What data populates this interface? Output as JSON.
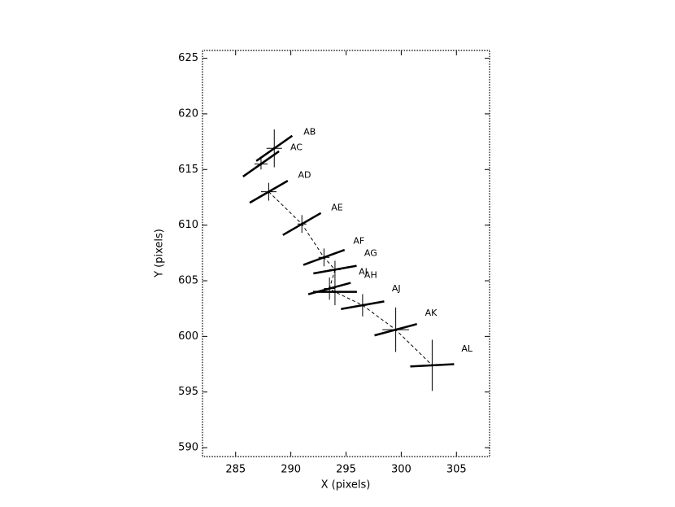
{
  "chart_data": {
    "type": "scatter",
    "xlabel": "X (pixels)",
    "ylabel": "Y (pixels)",
    "labels": [
      "AB",
      "AC",
      "AD",
      "AE",
      "AF",
      "AG",
      "AI",
      "AH",
      "AJ",
      "AK",
      "AL"
    ],
    "x": [
      288.5,
      287.3,
      288.0,
      291.0,
      293.0,
      294.0,
      293.5,
      294.0,
      296.5,
      299.5,
      302.8
    ],
    "y": [
      616.9,
      615.5,
      613.0,
      610.1,
      607.1,
      606.0,
      604.3,
      604.0,
      602.8,
      600.6,
      597.4
    ],
    "xerr": [
      0.7,
      0.6,
      0.7,
      0.4,
      0.5,
      0.5,
      0.5,
      0.7,
      0.4,
      1.2,
      0.3
    ],
    "yerr": [
      1.7,
      0.5,
      0.8,
      0.8,
      0.8,
      0.8,
      1.0,
      1.2,
      1.0,
      2.0,
      2.3
    ],
    "angles": [
      35,
      35,
      30,
      30,
      20,
      10,
      15,
      0,
      10,
      15,
      3
    ],
    "color": "#000000",
    "xlim": [
      282,
      308
    ],
    "ylim": [
      589.2,
      625.7
    ],
    "xticks": [
      285,
      290,
      295,
      300,
      305
    ],
    "yticks": [
      590,
      595,
      600,
      605,
      610,
      615,
      620,
      625
    ]
  }
}
